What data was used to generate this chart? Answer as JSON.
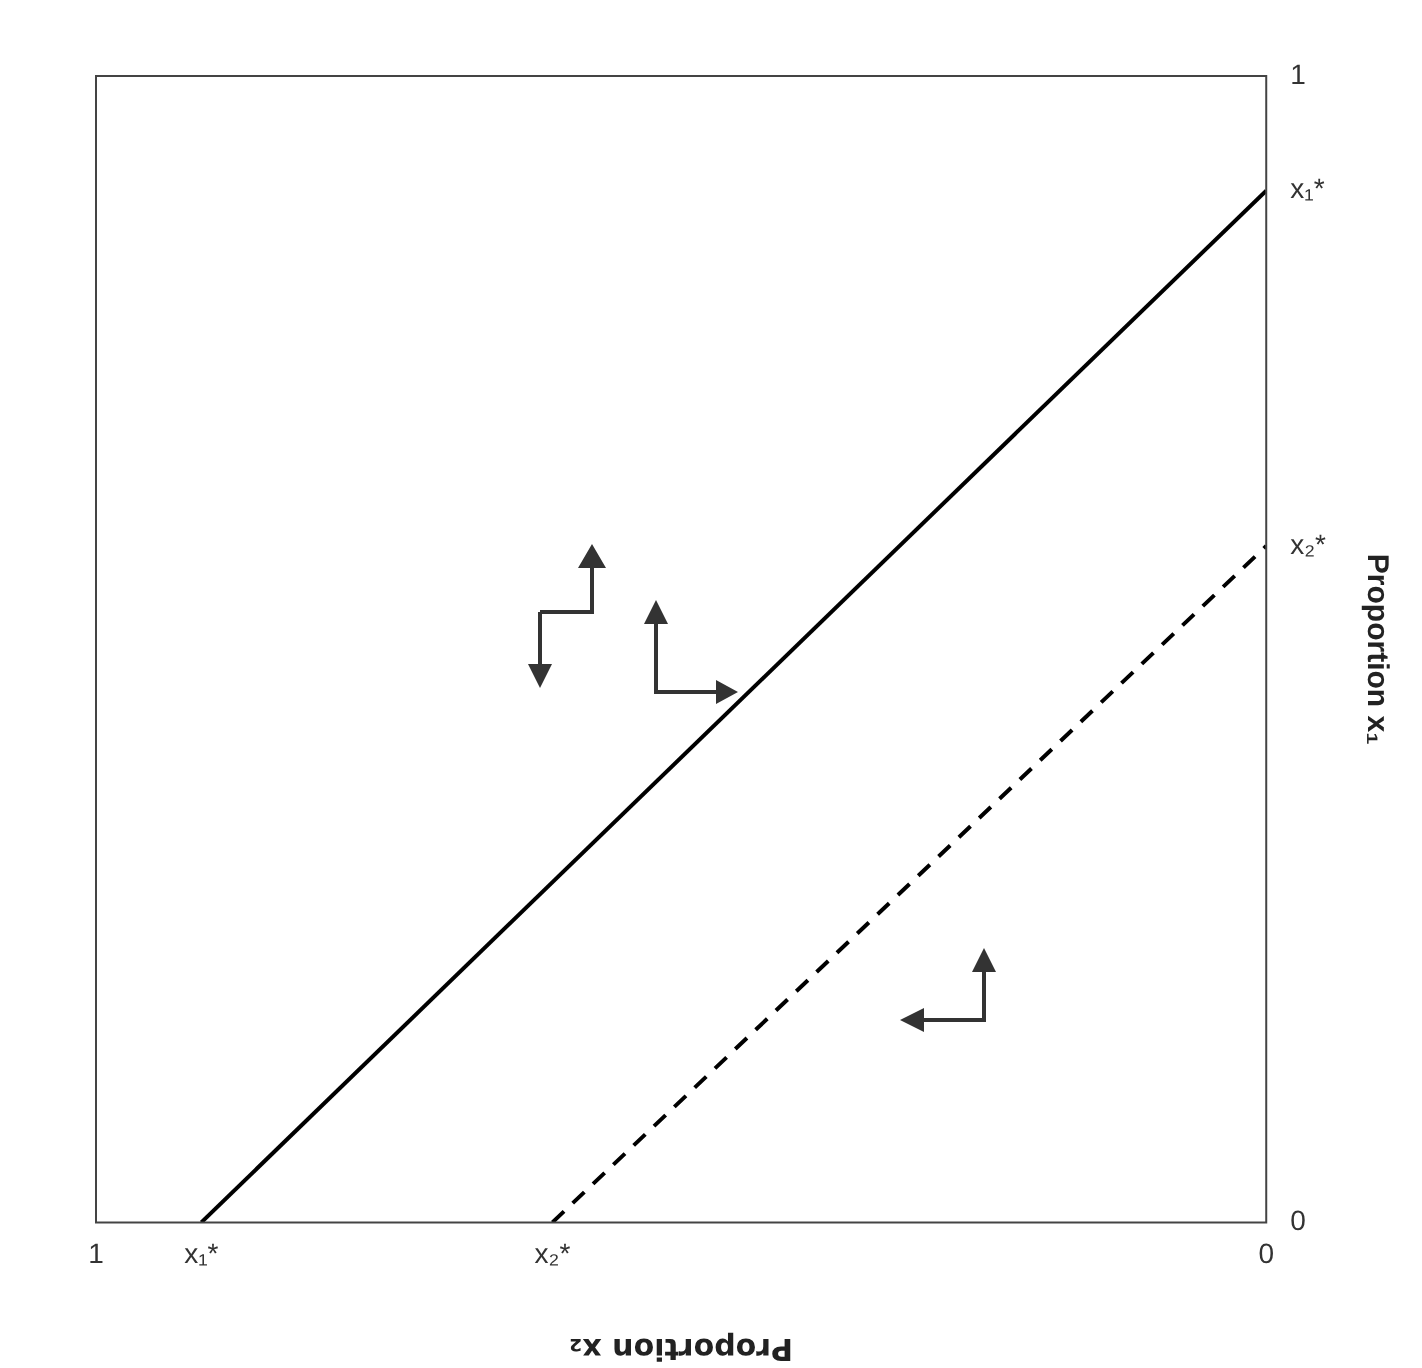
{
  "chart_data": {
    "type": "line",
    "xlabel": "Proportion x₂",
    "ylabel": "Proportion x₁",
    "xlim": [
      1,
      0
    ],
    "xticks": [
      1,
      {
        "value": 0.91,
        "label": "x₁*"
      },
      {
        "value": 0.61,
        "label": "x₂*"
      },
      0
    ],
    "ylim": [
      0,
      1
    ],
    "yticks": [
      0,
      {
        "value": 0.59,
        "label": "x₂*"
      },
      {
        "value": 0.9,
        "label": "x₁*"
      },
      1
    ],
    "grid": false,
    "legend": false,
    "marker": "none",
    "series": [
      {
        "color": "#000000",
        "x": [
          0.91,
          0
        ],
        "values": [
          0,
          0.9
        ],
        "line_style": "solid"
      },
      {
        "color": "#000000",
        "x": [
          0.61,
          0
        ],
        "values": [
          0,
          0.59
        ],
        "line_style": "dashed"
      }
    ]
  }
}
